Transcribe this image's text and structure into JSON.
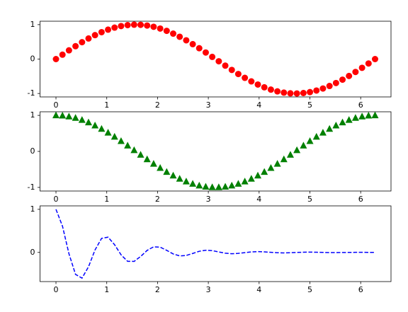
{
  "chart_data": [
    {
      "type": "line",
      "color": "#ff0000",
      "marker": "circle",
      "linestyle": "none",
      "x": [
        0,
        0.128,
        0.256,
        0.385,
        0.513,
        0.641,
        0.769,
        0.898,
        1.026,
        1.154,
        1.282,
        1.411,
        1.539,
        1.667,
        1.795,
        1.923,
        2.052,
        2.18,
        2.308,
        2.436,
        2.565,
        2.693,
        2.821,
        2.949,
        3.077,
        3.206,
        3.334,
        3.462,
        3.59,
        3.719,
        3.847,
        3.975,
        4.103,
        4.232,
        4.36,
        4.488,
        4.616,
        4.744,
        4.873,
        5.001,
        5.129,
        5.257,
        5.386,
        5.514,
        5.642,
        5.77,
        5.898,
        6.027,
        6.155,
        6.283
      ],
      "values": [
        0,
        0.128,
        0.254,
        0.375,
        0.491,
        0.598,
        0.696,
        0.782,
        0.855,
        0.914,
        0.959,
        0.987,
        0.999,
        0.995,
        0.975,
        0.939,
        0.887,
        0.82,
        0.74,
        0.648,
        0.546,
        0.434,
        0.315,
        0.191,
        0.064,
        -0.064,
        -0.191,
        -0.315,
        -0.434,
        -0.546,
        -0.648,
        -0.74,
        -0.82,
        -0.887,
        -0.939,
        -0.975,
        -0.995,
        -0.999,
        -0.987,
        -0.959,
        -0.914,
        -0.855,
        -0.782,
        -0.696,
        -0.598,
        -0.491,
        -0.375,
        -0.254,
        -0.128,
        0
      ],
      "xlim": [
        -0.314,
        6.597
      ],
      "ylim": [
        -1.1,
        1.1
      ],
      "xticks": [
        0,
        1,
        2,
        3,
        4,
        5,
        6
      ],
      "yticks": [
        -1,
        0,
        1
      ]
    },
    {
      "type": "line",
      "color": "#008000",
      "marker": "triangle",
      "linestyle": "none",
      "x": [
        0,
        0.128,
        0.256,
        0.385,
        0.513,
        0.641,
        0.769,
        0.898,
        1.026,
        1.154,
        1.282,
        1.411,
        1.539,
        1.667,
        1.795,
        1.923,
        2.052,
        2.18,
        2.308,
        2.436,
        2.565,
        2.693,
        2.821,
        2.949,
        3.077,
        3.206,
        3.334,
        3.462,
        3.59,
        3.719,
        3.847,
        3.975,
        4.103,
        4.232,
        4.36,
        4.488,
        4.616,
        4.744,
        4.873,
        5.001,
        5.129,
        5.257,
        5.386,
        5.514,
        5.642,
        5.77,
        5.898,
        6.027,
        6.155,
        6.283
      ],
      "values": [
        1,
        0.992,
        0.967,
        0.927,
        0.871,
        0.802,
        0.718,
        0.624,
        0.518,
        0.405,
        0.285,
        0.16,
        0.032,
        -0.096,
        -0.222,
        -0.345,
        -0.462,
        -0.572,
        -0.673,
        -0.762,
        -0.838,
        -0.901,
        -0.949,
        -0.982,
        -0.998,
        -0.998,
        -0.982,
        -0.949,
        -0.901,
        -0.838,
        -0.762,
        -0.673,
        -0.572,
        -0.462,
        -0.345,
        -0.222,
        -0.096,
        0.032,
        0.16,
        0.285,
        0.405,
        0.518,
        0.624,
        0.718,
        0.802,
        0.871,
        0.927,
        0.967,
        0.992,
        1
      ],
      "xlim": [
        -0.314,
        6.597
      ],
      "ylim": [
        -1.1,
        1.1
      ],
      "xticks": [
        0,
        1,
        2,
        3,
        4,
        5,
        6
      ],
      "yticks": [
        -1,
        0,
        1
      ]
    },
    {
      "type": "line",
      "color": "#0000ff",
      "marker": "none",
      "linestyle": "dashed",
      "x": [
        0,
        0.128,
        0.256,
        0.385,
        0.513,
        0.641,
        0.769,
        0.898,
        1.026,
        1.154,
        1.282,
        1.411,
        1.539,
        1.667,
        1.795,
        1.923,
        2.052,
        2.18,
        2.308,
        2.436,
        2.565,
        2.693,
        2.821,
        2.949,
        3.077,
        3.206,
        3.334,
        3.462,
        3.59,
        3.719,
        3.847,
        3.975,
        4.103,
        4.232,
        4.36,
        4.488,
        4.616,
        4.744,
        4.873,
        5.001,
        5.129,
        5.257,
        5.386,
        5.514,
        5.642,
        5.77,
        5.898,
        6.027,
        6.155,
        6.283
      ],
      "values": [
        1,
        0.61,
        -0.032,
        -0.51,
        -0.597,
        -0.333,
        0.057,
        0.326,
        0.354,
        0.179,
        -0.056,
        -0.207,
        -0.208,
        -0.094,
        0.047,
        0.13,
        0.122,
        0.048,
        -0.036,
        -0.081,
        -0.071,
        -0.024,
        0.026,
        0.05,
        0.041,
        0.011,
        -0.018,
        -0.031,
        -0.023,
        -0.005,
        0.012,
        0.019,
        0.013,
        0.002,
        -0.008,
        -0.011,
        -0.007,
        0,
        0.005,
        0.007,
        0.004,
        0,
        -0.003,
        -0.004,
        -0.002,
        0,
        0.002,
        0.002,
        0.001,
        0
      ],
      "xlim": [
        -0.314,
        6.597
      ],
      "ylim": [
        -0.677,
        1.08
      ],
      "xticks": [
        0,
        1,
        2,
        3,
        4,
        5,
        6
      ],
      "yticks": [
        0,
        1
      ]
    }
  ]
}
